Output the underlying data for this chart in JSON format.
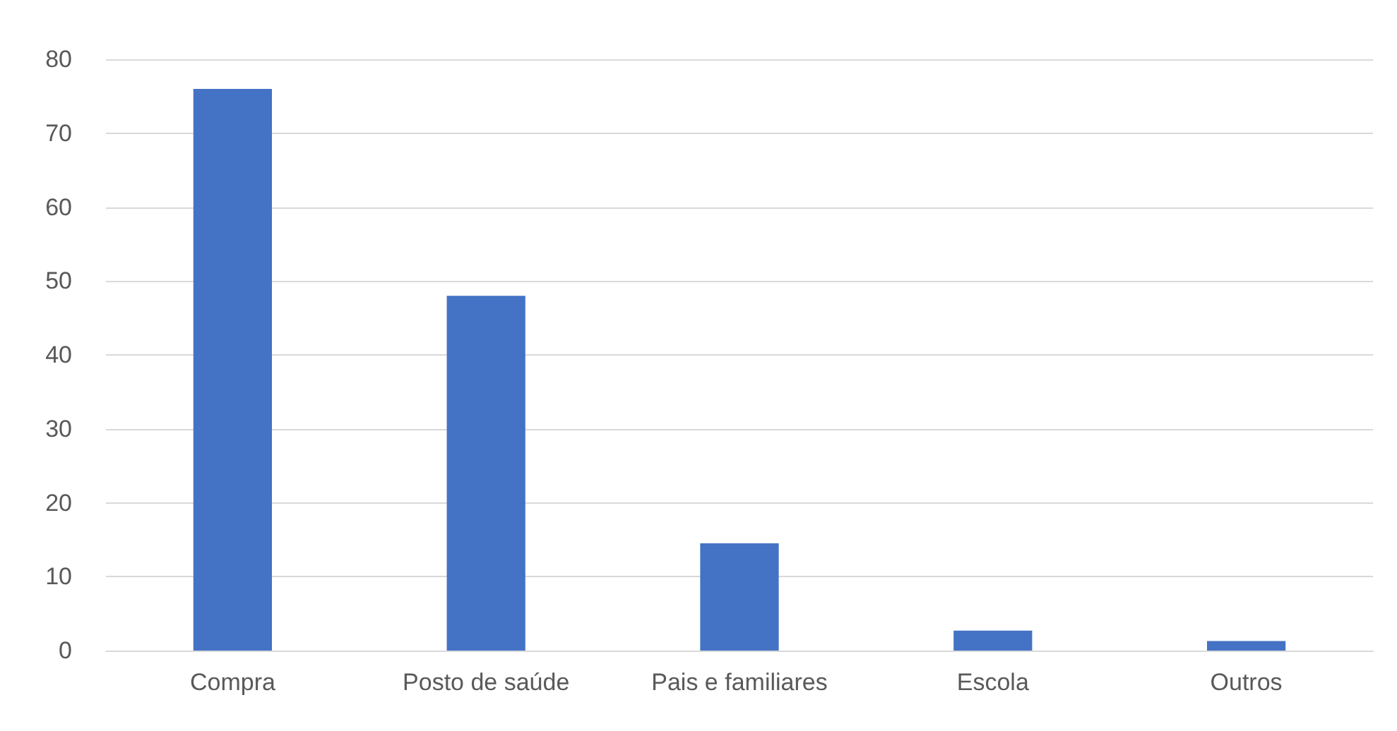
{
  "chart_data": {
    "type": "bar",
    "categories": [
      "Compra",
      "Posto de saúde",
      "Pais e familiares",
      "Escola",
      "Outros"
    ],
    "values": [
      76,
      48,
      14.5,
      2.7,
      1.3
    ],
    "color": "#4472c4",
    "ylim": [
      0,
      80
    ],
    "yticks": [
      0,
      10,
      20,
      30,
      40,
      50,
      60,
      70,
      80
    ],
    "grid": "y"
  }
}
